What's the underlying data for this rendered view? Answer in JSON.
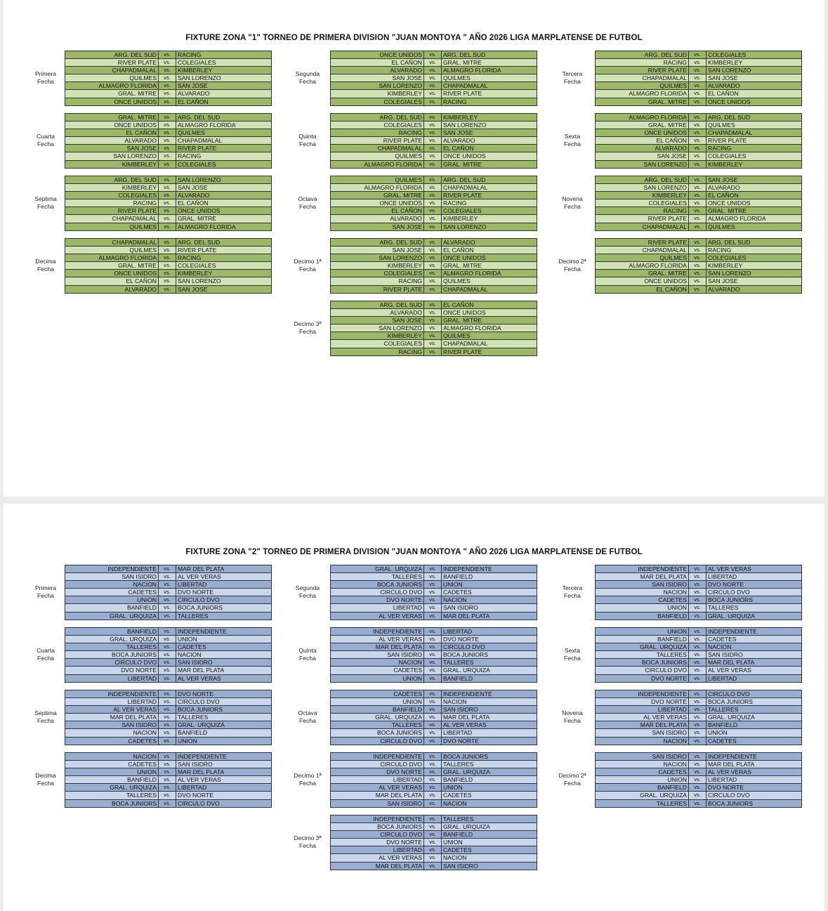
{
  "vs": "vs.",
  "colors": {
    "zona1_dark": "#9ab865",
    "zona1_light": "#d3e2b6",
    "zona2_dark": "#97add2",
    "zona2_light": "#c9d6ec"
  },
  "zona1": {
    "title": "FIXTURE ZONA \"1\" TORNEO DE PRIMERA DIVISION \"JUAN MONTOYA \" AÑO 2026 LIGA MARPLATENSE DE FUTBOL",
    "fechas": [
      {
        "l1": "Primera",
        "l2": "Fecha",
        "matches": [
          {
            "home": "ARG. DEL SUD",
            "away": "RACING"
          },
          {
            "home": "RIVER PLATE",
            "away": "COLEGIALES"
          },
          {
            "home": "CHAPADMALAL",
            "away": "KIMBERLEY"
          },
          {
            "home": "QUILMES",
            "away": "SAN LORENZO"
          },
          {
            "home": "ALMAGRO FLORIDA",
            "away": "SAN JOSE"
          },
          {
            "home": "GRAL. MITRE",
            "away": "ALVARADO"
          },
          {
            "home": "ONCE UNIDOS",
            "away": "EL CAÑON"
          }
        ]
      },
      {
        "l1": "Segunda",
        "l2": "Fecha",
        "matches": [
          {
            "home": "ONCE UNIDOS",
            "away": "ARG. DEL SUD"
          },
          {
            "home": "EL CAÑON",
            "away": "GRAL. MITRE"
          },
          {
            "home": "ALVARADO",
            "away": "ALMAGRO FLORIDA"
          },
          {
            "home": "SAN JOSE",
            "away": "QUILMES"
          },
          {
            "home": "SAN LORENZO",
            "away": "CHAPADMALAL"
          },
          {
            "home": "KIMBERLEY",
            "away": "RIVER PLATE"
          },
          {
            "home": "COLEGIALES",
            "away": "RACING"
          }
        ]
      },
      {
        "l1": "Tercera",
        "l2": "Fecha",
        "matches": [
          {
            "home": "ARG. DEL SUD",
            "away": "COLEGIALES"
          },
          {
            "home": "RACING",
            "away": "KIMBERLEY"
          },
          {
            "home": "RIVER PLATE",
            "away": "SAN LORENZO"
          },
          {
            "home": "CHAPADMALAL",
            "away": "SAN JOSE"
          },
          {
            "home": "QUILMES",
            "away": "ALVARADO"
          },
          {
            "home": "ALMAGRO FLORIDA",
            "away": "EL CAÑON"
          },
          {
            "home": "GRAL. MITRE",
            "away": "ONCE UNIDOS"
          }
        ]
      },
      {
        "l1": "Cuarta",
        "l2": "Fecha",
        "matches": [
          {
            "home": "GRAL. MITRE",
            "away": "ARG. DEL SUD"
          },
          {
            "home": "ONCE UNIDOS",
            "away": "ALMAGRO FLORIDA"
          },
          {
            "home": "EL CAÑON",
            "away": "QUILMES"
          },
          {
            "home": "ALVARADO",
            "away": "CHAPADMALAL"
          },
          {
            "home": "SAN JOSE",
            "away": "RIVER PLATE"
          },
          {
            "home": "SAN LORENZO",
            "away": "RACING"
          },
          {
            "home": "KIMBERLEY",
            "away": "COLEGIALES"
          }
        ]
      },
      {
        "l1": "Quinta",
        "l2": "Fecha",
        "matches": [
          {
            "home": "ARG. DEL SUD",
            "away": "KIMBERLEY"
          },
          {
            "home": "COLEGIALES",
            "away": "SAN LORENZO"
          },
          {
            "home": "RACING",
            "away": "SAN JOSE"
          },
          {
            "home": "RIVER PLATE",
            "away": "ALVARADO"
          },
          {
            "home": "CHAPADMALAL",
            "away": "EL CAÑON"
          },
          {
            "home": "QUILMES",
            "away": "ONCE UNIDOS"
          },
          {
            "home": "ALMAGRO FLORIDA",
            "away": "GRAL. MITRE"
          }
        ]
      },
      {
        "l1": "Sexta",
        "l2": "Fecha",
        "matches": [
          {
            "home": "ALMAGRO FLORIDA",
            "away": "ARG. DEL SUD"
          },
          {
            "home": "GRAL. MITRE",
            "away": "QUILMES"
          },
          {
            "home": "ONCE UNIDOS",
            "away": "CHAPADMALAL"
          },
          {
            "home": "EL CAÑON",
            "away": "RIVER PLATE"
          },
          {
            "home": "ALVARADO",
            "away": "RACING"
          },
          {
            "home": "SAN JOSE",
            "away": "COLEGIALES"
          },
          {
            "home": "SAN LORENZO",
            "away": "KIMBERLEY"
          }
        ]
      },
      {
        "l1": "Septima",
        "l2": "Fecha",
        "matches": [
          {
            "home": "ARG. DEL SUD",
            "away": "SAN LORENZO"
          },
          {
            "home": "KIMBERLEY",
            "away": "SAN JOSE"
          },
          {
            "home": "COLEGIALES",
            "away": "ALVARADO"
          },
          {
            "home": "RACING",
            "away": "EL CAÑON"
          },
          {
            "home": "RIVER PLATE",
            "away": "ONCE UNIDOS"
          },
          {
            "home": "CHAPADMALAL",
            "away": "GRAL. MITRE"
          },
          {
            "home": "QUILMES",
            "away": "ALMAGRO FLORIDA"
          }
        ]
      },
      {
        "l1": "Octava",
        "l2": "Fecha",
        "matches": [
          {
            "home": "QUILMES",
            "away": "ARG. DEL SUD"
          },
          {
            "home": "ALMAGRO FLORIDA",
            "away": "CHAPADMALAL"
          },
          {
            "home": "GRAL. MITRE",
            "away": "RIVER PLATE"
          },
          {
            "home": "ONCE UNIDOS",
            "away": "RACING"
          },
          {
            "home": "EL CAÑON",
            "away": "COLEGIALES"
          },
          {
            "home": "ALVARADO",
            "away": "KIMBERLEY"
          },
          {
            "home": "SAN JOSE",
            "away": "SAN LORENZO"
          }
        ]
      },
      {
        "l1": "Novena",
        "l2": "Fecha",
        "matches": [
          {
            "home": "ARG. DEL SUD",
            "away": "SAN JOSE"
          },
          {
            "home": "SAN LORENZO",
            "away": "ALVARADO"
          },
          {
            "home": "KIMBERLEY",
            "away": "EL CAÑON"
          },
          {
            "home": "COLEGIALES",
            "away": "ONCE UNIDOS"
          },
          {
            "home": "RACING",
            "away": "GRAL. MITRE"
          },
          {
            "home": "RIVER PLATE",
            "away": "ALMAGRO FLORIDA"
          },
          {
            "home": "CHAPADMALAL",
            "away": "QUILMES"
          }
        ]
      },
      {
        "l1": "Decima",
        "l2": "Fecha",
        "matches": [
          {
            "home": "CHAPADMALAL",
            "away": "ARG. DEL SUD"
          },
          {
            "home": "QUILMES",
            "away": "RIVER PLATE"
          },
          {
            "home": "ALMAGRO FLORIDA",
            "away": "RACING"
          },
          {
            "home": "GRAL. MITRE",
            "away": "COLEGIALES"
          },
          {
            "home": "ONCE UNIDOS",
            "away": "KIMBERLEY"
          },
          {
            "home": "EL CAÑON",
            "away": "SAN LORENZO"
          },
          {
            "home": "ALVARADO",
            "away": "SAN JOSE"
          }
        ]
      },
      {
        "l1": "Decimo 1ª",
        "l2": "Fecha",
        "matches": [
          {
            "home": "ARG. DEL SUD",
            "away": "ALVARADO"
          },
          {
            "home": "SAN JOSE",
            "away": "EL CAÑON"
          },
          {
            "home": "SAN LORENZO",
            "away": "ONCE UNIDOS"
          },
          {
            "home": "KIMBERLEY",
            "away": "GRAL. MITRE"
          },
          {
            "home": "COLEGIALES",
            "away": "ALMAGRO FLORIDA"
          },
          {
            "home": "RACING",
            "away": "QUILMES"
          },
          {
            "home": "RIVER PLATE",
            "away": "CHAPADMALAL"
          }
        ]
      },
      {
        "l1": "Decimo 2ª",
        "l2": "Fecha",
        "matches": [
          {
            "home": "RIVER PLATE",
            "away": "ARG. DEL SUD"
          },
          {
            "home": "CHAPADMALAL",
            "away": "RACING"
          },
          {
            "home": "QUILMES",
            "away": "COLEGIALES"
          },
          {
            "home": "ALMAGRO FLORIDA",
            "away": "KIMBERLEY"
          },
          {
            "home": "GRAL. MITRE",
            "away": "SAN LORENZO"
          },
          {
            "home": "ONCE UNIDOS",
            "away": "SAN JOSE"
          },
          {
            "home": "EL CAÑON",
            "away": "ALVARADO"
          }
        ]
      },
      {
        "l1": "Decimo 3ª",
        "l2": "Fecha",
        "matches": [
          {
            "home": "ARG. DEL SUD",
            "away": "EL CAÑON"
          },
          {
            "home": "ALVARADO",
            "away": "ONCE UNIDOS"
          },
          {
            "home": "SAN JOSE",
            "away": "GRAL. MITRE"
          },
          {
            "home": "SAN LORENZO",
            "away": "ALMAGRO FLORIDA"
          },
          {
            "home": "KIMBERLEY",
            "away": "QUILMES"
          },
          {
            "home": "COLEGIALES",
            "away": "CHAPADMALAL"
          },
          {
            "home": "RACING",
            "away": "RIVER PLATE"
          }
        ]
      }
    ]
  },
  "zona2": {
    "title": "FIXTURE ZONA \"2\" TORNEO DE PRIMERA DIVISION \"JUAN MONTOYA \" AÑO 2026 LIGA MARPLATENSE DE FUTBOL",
    "fechas": [
      {
        "l1": "Primera",
        "l2": "Fecha",
        "matches": [
          {
            "home": "INDEPENDIENTE",
            "away": "MAR DEL PLATA"
          },
          {
            "home": "SAN ISIDRO",
            "away": "AL VER VERAS"
          },
          {
            "home": "NACION",
            "away": "LIBERTAD"
          },
          {
            "home": "CADETES",
            "away": "DVO NORTE"
          },
          {
            "home": "UNION",
            "away": "CIRCULO DVO"
          },
          {
            "home": "BANFIELD",
            "away": "BOCA JUNIORS"
          },
          {
            "home": "GRAL. URQUIZA",
            "away": "TALLERES"
          }
        ]
      },
      {
        "l1": "Segunda",
        "l2": "Fecha",
        "matches": [
          {
            "home": "GRAL. URQUIZA",
            "away": "INDEPENDIENTE"
          },
          {
            "home": "TALLERES",
            "away": "BANFIELD"
          },
          {
            "home": "BOCA JUNIORS",
            "away": "UNION"
          },
          {
            "home": "CIRCULO DVO",
            "away": "CADETES"
          },
          {
            "home": "DVO NORTE",
            "away": "NACION"
          },
          {
            "home": "LIBERTAD",
            "away": "SAN ISIDRO"
          },
          {
            "home": "AL VER VERAS",
            "away": "MAR DEL PLATA"
          }
        ]
      },
      {
        "l1": "Tercera",
        "l2": "Fecha",
        "matches": [
          {
            "home": "INDEPENDIENTE",
            "away": "AL VER VERAS"
          },
          {
            "home": "MAR DEL PLATA",
            "away": "LIBERTAD"
          },
          {
            "home": "SAN ISIDRO",
            "away": "DVO NORTE"
          },
          {
            "home": "NACION",
            "away": "CIRCULO DVO"
          },
          {
            "home": "CADETES",
            "away": "BOCA JUNIORS"
          },
          {
            "home": "UNION",
            "away": "TALLERES"
          },
          {
            "home": "BANFIELD",
            "away": "GRAL. URQUIZA"
          }
        ]
      },
      {
        "l1": "Cuarta",
        "l2": "Fecha",
        "matches": [
          {
            "home": "BANFIELD",
            "away": "INDEPENDIENTE"
          },
          {
            "home": "GRAL. URQUIZA",
            "away": "UNION"
          },
          {
            "home": "TALLERES",
            "away": "CADETES"
          },
          {
            "home": "BOCA JUNIORS",
            "away": "NACION"
          },
          {
            "home": "CIRCULO DVO",
            "away": "SAN ISIDRO"
          },
          {
            "home": "DVO NORTE",
            "away": "MAR DEL PLATA"
          },
          {
            "home": "LIBERTAD",
            "away": "AL VER VERAS"
          }
        ]
      },
      {
        "l1": "Quinta",
        "l2": "Fecha",
        "matches": [
          {
            "home": "INDEPENDIENTE",
            "away": "LIBERTAD"
          },
          {
            "home": "AL VER VERAS",
            "away": "DVO NORTE"
          },
          {
            "home": "MAR DEL PLATA",
            "away": "CIRCULO DVO"
          },
          {
            "home": "SAN ISIDRO",
            "away": "BOCA JUNIORS"
          },
          {
            "home": "NACION",
            "away": "TALLERES"
          },
          {
            "home": "CADETES",
            "away": "GRAL. URQUIZA"
          },
          {
            "home": "UNION",
            "away": "BANFIELD"
          }
        ]
      },
      {
        "l1": "Sexta",
        "l2": "Fecha",
        "matches": [
          {
            "home": "UNION",
            "away": "INDEPENDIENTE"
          },
          {
            "home": "BANFIELD",
            "away": "CADETES"
          },
          {
            "home": "GRAL. URQUIZA",
            "away": "NACION"
          },
          {
            "home": "TALLERES",
            "away": "SAN ISIDRO"
          },
          {
            "home": "BOCA JUNIORS",
            "away": "MAR DEL PLATA"
          },
          {
            "home": "CIRCULO DVO",
            "away": "AL VER VERAS"
          },
          {
            "home": "DVO NORTE",
            "away": "LIBERTAD"
          }
        ]
      },
      {
        "l1": "Septima",
        "l2": "Fecha",
        "matches": [
          {
            "home": "INDEPENDIENTE",
            "away": "DVO NORTE"
          },
          {
            "home": "LIBERTAD",
            "away": "CIRCULO DVO"
          },
          {
            "home": "AL VER VERAS",
            "away": "BOCA JUNIORS"
          },
          {
            "home": "MAR DEL PLATA",
            "away": "TALLERES"
          },
          {
            "home": "SAN ISIDRO",
            "away": "GRAL. URQUIZA"
          },
          {
            "home": "NACION",
            "away": "BANFIELD"
          },
          {
            "home": "CADETES",
            "away": "UNION"
          }
        ]
      },
      {
        "l1": "Octava",
        "l2": "Fecha",
        "matches": [
          {
            "home": "CADETES",
            "away": "INDEPENDIENTE"
          },
          {
            "home": "UNION",
            "away": "NACION"
          },
          {
            "home": "BANFIELD",
            "away": "SAN ISIDRO"
          },
          {
            "home": "GRAL. URQUIZA",
            "away": "MAR DEL PLATA"
          },
          {
            "home": "TALLERES",
            "away": "AL VER VERAS"
          },
          {
            "home": "BOCA JUNIORS",
            "away": "LIBERTAD"
          },
          {
            "home": "CIRCULO DVO",
            "away": "DVO NORTE"
          }
        ]
      },
      {
        "l1": "Novena",
        "l2": "Fecha",
        "matches": [
          {
            "home": "INDEPENDIENTE",
            "away": "CIRCULO DVO"
          },
          {
            "home": "DVO NORTE",
            "away": "BOCA JUNIORS"
          },
          {
            "home": "LIBERTAD",
            "away": "TALLERES"
          },
          {
            "home": "AL VER VERAS",
            "away": "GRAL. URQUIZA"
          },
          {
            "home": "MAR DEL PLATA",
            "away": "BANFIELD"
          },
          {
            "home": "SAN ISIDRO",
            "away": "UNION"
          },
          {
            "home": "NACION",
            "away": "CADETES"
          }
        ]
      },
      {
        "l1": "Decima",
        "l2": "Fecha",
        "matches": [
          {
            "home": "NACION",
            "away": "INDEPENDIENTE"
          },
          {
            "home": "CADETES",
            "away": "SAN ISIDRO"
          },
          {
            "home": "UNION",
            "away": "MAR DEL PLATA"
          },
          {
            "home": "BANFIELD",
            "away": "AL VER VERAS"
          },
          {
            "home": "GRAL. URQUIZA",
            "away": "LIBERTAD"
          },
          {
            "home": "TALLERES",
            "away": "DVO NORTE"
          },
          {
            "home": "BOCA JUNIORS",
            "away": "CIRCULO DVO"
          }
        ]
      },
      {
        "l1": "Decimo 1ª",
        "l2": "Fecha",
        "matches": [
          {
            "home": "INDEPENDIENTE",
            "away": "BOCA JUNIORS"
          },
          {
            "home": "CIRCULO DVO",
            "away": "TALLERES"
          },
          {
            "home": "DVO NORTE",
            "away": "GRAL. URQUIZA"
          },
          {
            "home": "LIBERTAD",
            "away": "BANFIELD"
          },
          {
            "home": "AL VER VERAS",
            "away": "UNION"
          },
          {
            "home": "MAR DEL PLATA",
            "away": "CADETES"
          },
          {
            "home": "SAN ISIDRO",
            "away": "NACION"
          }
        ]
      },
      {
        "l1": "Decimo 2ª",
        "l2": "Fecha",
        "matches": [
          {
            "home": "SAN ISIDRO",
            "away": "INDEPENDIENTE"
          },
          {
            "home": "NACION",
            "away": "MAR DEL PLATA"
          },
          {
            "home": "CADETES",
            "away": "AL VER VERAS"
          },
          {
            "home": "UNION",
            "away": "LIBERTAD"
          },
          {
            "home": "BANFIELD",
            "away": "DVO NORTE"
          },
          {
            "home": "GRAL. URQUIZA",
            "away": "CIRCULO DVO"
          },
          {
            "home": "TALLERES",
            "away": "BOCA JUNIORS"
          }
        ]
      },
      {
        "l1": "Decimo 3ª",
        "l2": "Fecha",
        "matches": [
          {
            "home": "INDEPENDIENTE",
            "away": "TALLERES"
          },
          {
            "home": "BOCA JUNIORS",
            "away": "GRAL. URQUIZA"
          },
          {
            "home": "CIRCULO DVO",
            "away": "BANFIELD"
          },
          {
            "home": "DVO NORTE",
            "away": "UNION"
          },
          {
            "home": "LIBERTAD",
            "away": "CADETES"
          },
          {
            "home": "AL VER VERAS",
            "away": "NACION"
          },
          {
            "home": "MAR DEL PLATA",
            "away": "SAN ISIDRO"
          }
        ]
      }
    ]
  }
}
